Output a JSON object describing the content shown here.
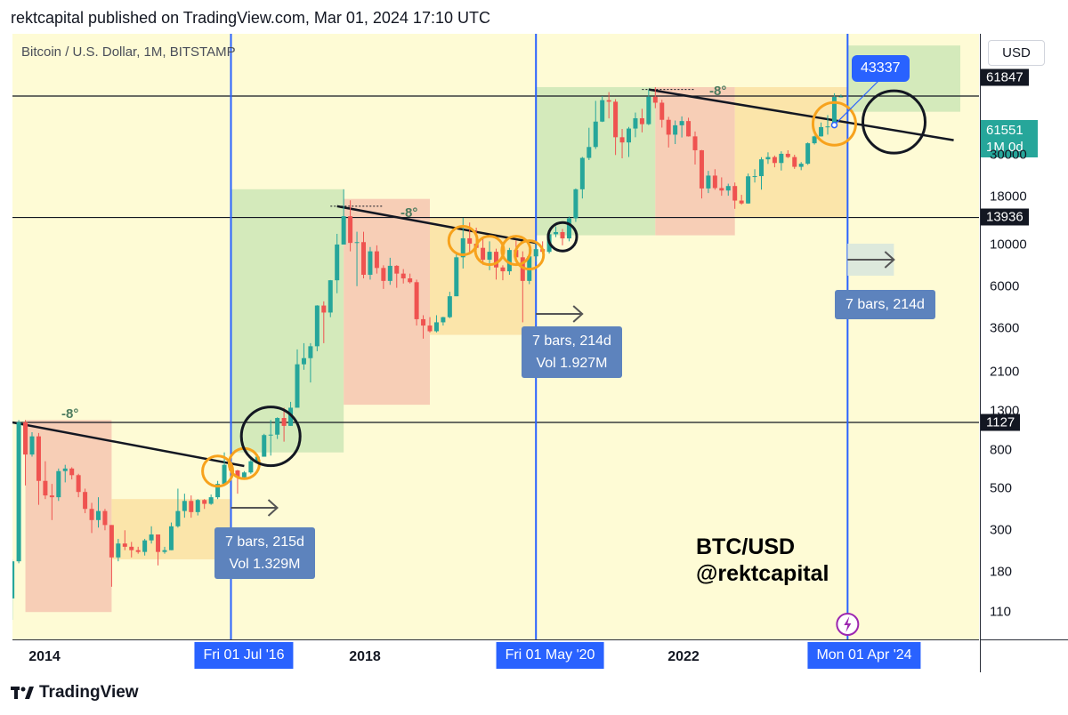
{
  "header": {
    "published": "rektcapital published on TradingView.com, Mar 01, 2024 17:10 UTC"
  },
  "symbol": "Bitcoin / U.S. Dollar, 1M, BITSTAMP",
  "currency": "USD",
  "price_tags": {
    "black_top": "61847",
    "current_price": "61551",
    "current_interval": "1M 0d",
    "level_mid": "13936",
    "level_low": "1127"
  },
  "chart_data": {
    "type": "candlestick",
    "title": "BTC/USD @rektcapital",
    "yscale": "log",
    "ylim": [
      75,
      115000
    ],
    "y_ticks": [
      110,
      180,
      300,
      500,
      800,
      1300,
      2100,
      3600,
      6000,
      10000,
      18000,
      30000
    ],
    "x_ticks": [
      "2014",
      "2018",
      "2022"
    ],
    "horizontal_levels": [
      61847,
      13936,
      1127
    ],
    "halving_lines": [
      "Fri 01 Jul '16",
      "Fri 01 May '20",
      "Mon 01 Apr '24"
    ],
    "candles": [
      {
        "t": "2013-10",
        "o": 130,
        "h": 210,
        "l": 100,
        "c": 205
      },
      {
        "t": "2013-11",
        "o": 205,
        "h": 1160,
        "l": 200,
        "c": 1130
      },
      {
        "t": "2013-12",
        "o": 1130,
        "h": 1160,
        "l": 520,
        "c": 760
      },
      {
        "t": "2014-01",
        "o": 760,
        "h": 1000,
        "l": 740,
        "c": 950
      },
      {
        "t": "2014-02",
        "o": 950,
        "h": 990,
        "l": 410,
        "c": 550
      },
      {
        "t": "2014-03",
        "o": 550,
        "h": 700,
        "l": 440,
        "c": 460
      },
      {
        "t": "2014-04",
        "o": 460,
        "h": 530,
        "l": 340,
        "c": 450
      },
      {
        "t": "2014-05",
        "o": 450,
        "h": 640,
        "l": 430,
        "c": 620
      },
      {
        "t": "2014-06",
        "o": 620,
        "h": 670,
        "l": 540,
        "c": 640
      },
      {
        "t": "2014-07",
        "o": 640,
        "h": 650,
        "l": 560,
        "c": 590
      },
      {
        "t": "2014-08",
        "o": 590,
        "h": 600,
        "l": 450,
        "c": 480
      },
      {
        "t": "2014-09",
        "o": 480,
        "h": 500,
        "l": 370,
        "c": 390
      },
      {
        "t": "2014-10",
        "o": 390,
        "h": 420,
        "l": 290,
        "c": 340
      },
      {
        "t": "2014-11",
        "o": 340,
        "h": 450,
        "l": 310,
        "c": 380
      },
      {
        "t": "2014-12",
        "o": 380,
        "h": 390,
        "l": 300,
        "c": 320
      },
      {
        "t": "2015-01",
        "o": 320,
        "h": 320,
        "l": 150,
        "c": 215
      },
      {
        "t": "2015-02",
        "o": 215,
        "h": 270,
        "l": 205,
        "c": 255
      },
      {
        "t": "2015-03",
        "o": 255,
        "h": 300,
        "l": 235,
        "c": 245
      },
      {
        "t": "2015-04",
        "o": 245,
        "h": 260,
        "l": 215,
        "c": 235
      },
      {
        "t": "2015-05",
        "o": 235,
        "h": 245,
        "l": 225,
        "c": 230
      },
      {
        "t": "2015-06",
        "o": 230,
        "h": 270,
        "l": 220,
        "c": 265
      },
      {
        "t": "2015-07",
        "o": 265,
        "h": 315,
        "l": 255,
        "c": 285
      },
      {
        "t": "2015-08",
        "o": 285,
        "h": 285,
        "l": 195,
        "c": 230
      },
      {
        "t": "2015-09",
        "o": 230,
        "h": 245,
        "l": 225,
        "c": 235
      },
      {
        "t": "2015-10",
        "o": 235,
        "h": 330,
        "l": 235,
        "c": 315
      },
      {
        "t": "2015-11",
        "o": 315,
        "h": 500,
        "l": 310,
        "c": 380
      },
      {
        "t": "2015-12",
        "o": 380,
        "h": 470,
        "l": 350,
        "c": 430
      },
      {
        "t": "2016-01",
        "o": 430,
        "h": 460,
        "l": 350,
        "c": 375
      },
      {
        "t": "2016-02",
        "o": 375,
        "h": 440,
        "l": 360,
        "c": 435
      },
      {
        "t": "2016-03",
        "o": 435,
        "h": 440,
        "l": 390,
        "c": 415
      },
      {
        "t": "2016-04",
        "o": 415,
        "h": 465,
        "l": 410,
        "c": 450
      },
      {
        "t": "2016-05",
        "o": 450,
        "h": 550,
        "l": 440,
        "c": 530
      },
      {
        "t": "2016-06",
        "o": 530,
        "h": 780,
        "l": 520,
        "c": 670
      },
      {
        "t": "2016-07",
        "o": 670,
        "h": 700,
        "l": 600,
        "c": 625
      },
      {
        "t": "2016-08",
        "o": 625,
        "h": 630,
        "l": 470,
        "c": 575
      },
      {
        "t": "2016-09",
        "o": 575,
        "h": 620,
        "l": 570,
        "c": 610
      },
      {
        "t": "2016-10",
        "o": 610,
        "h": 720,
        "l": 600,
        "c": 700
      },
      {
        "t": "2016-11",
        "o": 700,
        "h": 750,
        "l": 690,
        "c": 740
      },
      {
        "t": "2016-12",
        "o": 740,
        "h": 980,
        "l": 740,
        "c": 965
      },
      {
        "t": "2017-01",
        "o": 965,
        "h": 1160,
        "l": 750,
        "c": 970
      },
      {
        "t": "2017-02",
        "o": 970,
        "h": 1200,
        "l": 920,
        "c": 1190
      },
      {
        "t": "2017-03",
        "o": 1190,
        "h": 1350,
        "l": 890,
        "c": 1080
      },
      {
        "t": "2017-04",
        "o": 1080,
        "h": 1450,
        "l": 1080,
        "c": 1350
      },
      {
        "t": "2017-05",
        "o": 1350,
        "h": 2760,
        "l": 1350,
        "c": 2300
      },
      {
        "t": "2017-06",
        "o": 2300,
        "h": 2980,
        "l": 2150,
        "c": 2480
      },
      {
        "t": "2017-07",
        "o": 2480,
        "h": 2980,
        "l": 1840,
        "c": 2870
      },
      {
        "t": "2017-08",
        "o": 2870,
        "h": 4750,
        "l": 2700,
        "c": 4730
      },
      {
        "t": "2017-09",
        "o": 4730,
        "h": 4980,
        "l": 2980,
        "c": 4340
      },
      {
        "t": "2017-10",
        "o": 4340,
        "h": 6470,
        "l": 4100,
        "c": 6450
      },
      {
        "t": "2017-11",
        "o": 6450,
        "h": 11400,
        "l": 5500,
        "c": 10000
      },
      {
        "t": "2017-12",
        "o": 10000,
        "h": 19700,
        "l": 10000,
        "c": 14150
      },
      {
        "t": "2018-01",
        "o": 14150,
        "h": 17200,
        "l": 9200,
        "c": 10200
      },
      {
        "t": "2018-02",
        "o": 10200,
        "h": 11700,
        "l": 6000,
        "c": 10300
      },
      {
        "t": "2018-03",
        "o": 10300,
        "h": 11700,
        "l": 6600,
        "c": 6900
      },
      {
        "t": "2018-04",
        "o": 6900,
        "h": 9700,
        "l": 6500,
        "c": 9200
      },
      {
        "t": "2018-05",
        "o": 9200,
        "h": 9900,
        "l": 7000,
        "c": 7500
      },
      {
        "t": "2018-06",
        "o": 7500,
        "h": 7750,
        "l": 5800,
        "c": 6400
      },
      {
        "t": "2018-07",
        "o": 6400,
        "h": 8500,
        "l": 6100,
        "c": 7700
      },
      {
        "t": "2018-08",
        "o": 7700,
        "h": 7760,
        "l": 5880,
        "c": 7000
      },
      {
        "t": "2018-09",
        "o": 7000,
        "h": 7400,
        "l": 6200,
        "c": 6600
      },
      {
        "t": "2018-10",
        "o": 6600,
        "h": 7000,
        "l": 6200,
        "c": 6300
      },
      {
        "t": "2018-11",
        "o": 6300,
        "h": 6500,
        "l": 3700,
        "c": 4000
      },
      {
        "t": "2018-12",
        "o": 4000,
        "h": 4200,
        "l": 3150,
        "c": 3700
      },
      {
        "t": "2019-01",
        "o": 3700,
        "h": 4100,
        "l": 3400,
        "c": 3450
      },
      {
        "t": "2019-02",
        "o": 3450,
        "h": 4200,
        "l": 3400,
        "c": 3850
      },
      {
        "t": "2019-03",
        "o": 3850,
        "h": 4120,
        "l": 3700,
        "c": 4100
      },
      {
        "t": "2019-04",
        "o": 4100,
        "h": 5600,
        "l": 4050,
        "c": 5300
      },
      {
        "t": "2019-05",
        "o": 5300,
        "h": 9000,
        "l": 5300,
        "c": 8550
      },
      {
        "t": "2019-06",
        "o": 8550,
        "h": 13880,
        "l": 7450,
        "c": 10800
      },
      {
        "t": "2019-07",
        "o": 10800,
        "h": 13100,
        "l": 9100,
        "c": 10100
      },
      {
        "t": "2019-08",
        "o": 10100,
        "h": 12300,
        "l": 9400,
        "c": 9600
      },
      {
        "t": "2019-09",
        "o": 9600,
        "h": 10900,
        "l": 7800,
        "c": 8300
      },
      {
        "t": "2019-10",
        "o": 8300,
        "h": 10400,
        "l": 7300,
        "c": 9150
      },
      {
        "t": "2019-11",
        "o": 9150,
        "h": 9500,
        "l": 6500,
        "c": 7550
      },
      {
        "t": "2019-12",
        "o": 7550,
        "h": 7750,
        "l": 6450,
        "c": 7200
      },
      {
        "t": "2020-01",
        "o": 7200,
        "h": 9600,
        "l": 6900,
        "c": 9350
      },
      {
        "t": "2020-02",
        "o": 9350,
        "h": 10500,
        "l": 8500,
        "c": 8550
      },
      {
        "t": "2020-03",
        "o": 8550,
        "h": 9200,
        "l": 3850,
        "c": 6400
      },
      {
        "t": "2020-04",
        "o": 6400,
        "h": 9450,
        "l": 6150,
        "c": 8650
      },
      {
        "t": "2020-05",
        "o": 8650,
        "h": 10050,
        "l": 8100,
        "c": 9450
      },
      {
        "t": "2020-06",
        "o": 9450,
        "h": 10400,
        "l": 8900,
        "c": 9140
      },
      {
        "t": "2020-07",
        "o": 9140,
        "h": 11450,
        "l": 8950,
        "c": 11350
      },
      {
        "t": "2020-08",
        "o": 11350,
        "h": 12480,
        "l": 10950,
        "c": 11650
      },
      {
        "t": "2020-09",
        "o": 11650,
        "h": 12100,
        "l": 9900,
        "c": 10780
      },
      {
        "t": "2020-10",
        "o": 10780,
        "h": 14100,
        "l": 10400,
        "c": 13800
      },
      {
        "t": "2020-11",
        "o": 13800,
        "h": 19900,
        "l": 13200,
        "c": 19700
      },
      {
        "t": "2020-12",
        "o": 19700,
        "h": 29300,
        "l": 17600,
        "c": 28950
      },
      {
        "t": "2021-01",
        "o": 28950,
        "h": 41900,
        "l": 28200,
        "c": 33100
      },
      {
        "t": "2021-02",
        "o": 33100,
        "h": 58300,
        "l": 32300,
        "c": 45200
      },
      {
        "t": "2021-03",
        "o": 45200,
        "h": 61800,
        "l": 44950,
        "c": 58800
      },
      {
        "t": "2021-04",
        "o": 58800,
        "h": 64900,
        "l": 47000,
        "c": 57700
      },
      {
        "t": "2021-05",
        "o": 57700,
        "h": 59500,
        "l": 30000,
        "c": 37300
      },
      {
        "t": "2021-06",
        "o": 37300,
        "h": 41300,
        "l": 28800,
        "c": 35000
      },
      {
        "t": "2021-07",
        "o": 35000,
        "h": 42300,
        "l": 29300,
        "c": 41500
      },
      {
        "t": "2021-08",
        "o": 41500,
        "h": 50500,
        "l": 37300,
        "c": 47100
      },
      {
        "t": "2021-09",
        "o": 47100,
        "h": 52900,
        "l": 39600,
        "c": 43800
      },
      {
        "t": "2021-10",
        "o": 43800,
        "h": 67000,
        "l": 43300,
        "c": 61300
      },
      {
        "t": "2021-11",
        "o": 61300,
        "h": 69000,
        "l": 53300,
        "c": 57000
      },
      {
        "t": "2021-12",
        "o": 57000,
        "h": 59100,
        "l": 42000,
        "c": 46200
      },
      {
        "t": "2022-01",
        "o": 46200,
        "h": 47900,
        "l": 32900,
        "c": 38500
      },
      {
        "t": "2022-02",
        "o": 38500,
        "h": 45800,
        "l": 34300,
        "c": 43200
      },
      {
        "t": "2022-03",
        "o": 43200,
        "h": 48200,
        "l": 37200,
        "c": 45500
      },
      {
        "t": "2022-04",
        "o": 45500,
        "h": 47400,
        "l": 37600,
        "c": 37700
      },
      {
        "t": "2022-05",
        "o": 37700,
        "h": 40000,
        "l": 26700,
        "c": 31800
      },
      {
        "t": "2022-06",
        "o": 31800,
        "h": 31900,
        "l": 17600,
        "c": 19900
      },
      {
        "t": "2022-07",
        "o": 19900,
        "h": 24700,
        "l": 18800,
        "c": 23300
      },
      {
        "t": "2022-08",
        "o": 23300,
        "h": 25200,
        "l": 19600,
        "c": 20000
      },
      {
        "t": "2022-09",
        "o": 20000,
        "h": 22800,
        "l": 18200,
        "c": 19400
      },
      {
        "t": "2022-10",
        "o": 19400,
        "h": 21100,
        "l": 18200,
        "c": 20500
      },
      {
        "t": "2022-11",
        "o": 20500,
        "h": 21400,
        "l": 15500,
        "c": 17150
      },
      {
        "t": "2022-12",
        "o": 17150,
        "h": 18400,
        "l": 16300,
        "c": 16550
      },
      {
        "t": "2023-01",
        "o": 16550,
        "h": 23900,
        "l": 16500,
        "c": 23100
      },
      {
        "t": "2023-02",
        "o": 23100,
        "h": 25200,
        "l": 21400,
        "c": 23150
      },
      {
        "t": "2023-03",
        "o": 23150,
        "h": 29200,
        "l": 19600,
        "c": 28450
      },
      {
        "t": "2023-04",
        "o": 28450,
        "h": 31000,
        "l": 26900,
        "c": 29250
      },
      {
        "t": "2023-05",
        "o": 29250,
        "h": 29800,
        "l": 25800,
        "c": 27200
      },
      {
        "t": "2023-06",
        "o": 27200,
        "h": 31400,
        "l": 24800,
        "c": 30450
      },
      {
        "t": "2023-07",
        "o": 30450,
        "h": 31800,
        "l": 28900,
        "c": 29250
      },
      {
        "t": "2023-08",
        "o": 29250,
        "h": 30100,
        "l": 25300,
        "c": 25950
      },
      {
        "t": "2023-09",
        "o": 25950,
        "h": 27500,
        "l": 24900,
        "c": 26950
      },
      {
        "t": "2023-10",
        "o": 26950,
        "h": 35000,
        "l": 26600,
        "c": 34650
      },
      {
        "t": "2023-11",
        "o": 34650,
        "h": 38000,
        "l": 34100,
        "c": 37700
      },
      {
        "t": "2023-12",
        "o": 37700,
        "h": 44700,
        "l": 37600,
        "c": 42250
      },
      {
        "t": "2024-01",
        "o": 42250,
        "h": 48900,
        "l": 38500,
        "c": 42600
      },
      {
        "t": "2024-02",
        "o": 42600,
        "h": 64000,
        "l": 41900,
        "c": 61200
      },
      {
        "t": "2024-03",
        "o": 61200,
        "h": 63000,
        "l": 61000,
        "c": 61551
      }
    ]
  },
  "annotations": {
    "angle_label": "-8°",
    "popup_price": "43337",
    "measure_1": {
      "bars": "7 bars, 215d",
      "vol": "Vol 1.329M"
    },
    "measure_2": {
      "bars": "7 bars, 214d",
      "vol": "Vol 1.927M"
    },
    "measure_3": {
      "bars": "7 bars, 214d"
    },
    "watermark_line1": "BTC/USD",
    "watermark_line2": "@rektcapital"
  },
  "footer": {
    "brand": "TradingView"
  },
  "colors": {
    "up": "#26a69a",
    "down": "#ef5350",
    "halving": "#2962ff",
    "orange_circle": "#f7a21c",
    "background": "#fefbd5"
  }
}
